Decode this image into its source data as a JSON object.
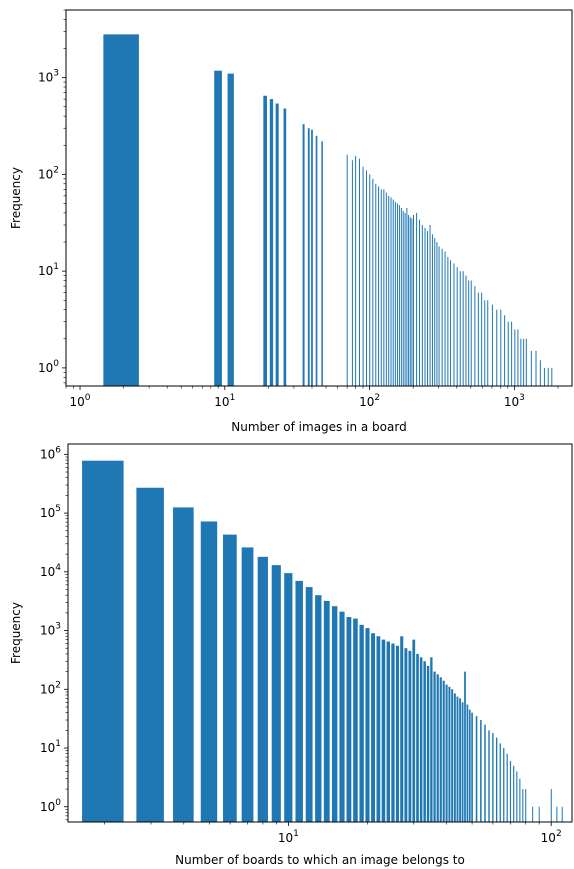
{
  "chart_data": [
    {
      "type": "bar",
      "xscale": "log",
      "yscale": "log",
      "xlim": [
        0.8,
        2500
      ],
      "ylim": [
        0.65,
        5000
      ],
      "xlabel": "Number of images in a board",
      "ylabel": "Frequency",
      "xticks": [
        {
          "v": 1,
          "base": "10",
          "exp": "0"
        },
        {
          "v": 10,
          "base": "10",
          "exp": "1"
        },
        {
          "v": 100,
          "base": "10",
          "exp": "2"
        },
        {
          "v": 1000,
          "base": "10",
          "exp": "3"
        }
      ],
      "yticks": [
        {
          "v": 1,
          "base": "10",
          "exp": "0"
        },
        {
          "v": 10,
          "base": "10",
          "exp": "1"
        },
        {
          "v": 100,
          "base": "10",
          "exp": "2"
        },
        {
          "v": 1000,
          "base": "10",
          "exp": "3"
        }
      ],
      "color": "#1f77b4",
      "bars": [
        [
          2,
          2800
        ],
        [
          9,
          1180
        ],
        [
          11,
          1100
        ],
        [
          19,
          650
        ],
        [
          21,
          600
        ],
        [
          23,
          540
        ],
        [
          26,
          480
        ],
        [
          35,
          330
        ],
        [
          38,
          300
        ],
        [
          40,
          290
        ],
        [
          43,
          250
        ],
        [
          47,
          220
        ],
        [
          70,
          160
        ],
        [
          76,
          140
        ],
        [
          80,
          155
        ],
        [
          85,
          145
        ],
        [
          90,
          120
        ],
        [
          95,
          110
        ],
        [
          100,
          100
        ],
        [
          105,
          90
        ],
        [
          110,
          80
        ],
        [
          115,
          75
        ],
        [
          120,
          70
        ],
        [
          125,
          70
        ],
        [
          130,
          65
        ],
        [
          135,
          60
        ],
        [
          140,
          58
        ],
        [
          145,
          55
        ],
        [
          150,
          52
        ],
        [
          155,
          50
        ],
        [
          160,
          48
        ],
        [
          165,
          45
        ],
        [
          170,
          42
        ],
        [
          175,
          40
        ],
        [
          180,
          45
        ],
        [
          185,
          38
        ],
        [
          190,
          36
        ],
        [
          195,
          35
        ],
        [
          200,
          38
        ],
        [
          210,
          40
        ],
        [
          220,
          34
        ],
        [
          230,
          30
        ],
        [
          240,
          28
        ],
        [
          250,
          26
        ],
        [
          260,
          30
        ],
        [
          270,
          24
        ],
        [
          280,
          22
        ],
        [
          290,
          20
        ],
        [
          300,
          18
        ],
        [
          315,
          17
        ],
        [
          330,
          16
        ],
        [
          345,
          14
        ],
        [
          360,
          13
        ],
        [
          380,
          12
        ],
        [
          400,
          11
        ],
        [
          420,
          10
        ],
        [
          440,
          10
        ],
        [
          460,
          9
        ],
        [
          480,
          8
        ],
        [
          500,
          8
        ],
        [
          530,
          7
        ],
        [
          560,
          6
        ],
        [
          590,
          6
        ],
        [
          620,
          5
        ],
        [
          650,
          5
        ],
        [
          700,
          4.5
        ],
        [
          750,
          4
        ],
        [
          800,
          4
        ],
        [
          850,
          3.5
        ],
        [
          900,
          3
        ],
        [
          950,
          3
        ],
        [
          1000,
          2.5
        ],
        [
          1050,
          2.5
        ],
        [
          1100,
          2
        ],
        [
          1150,
          2
        ],
        [
          1200,
          2
        ],
        [
          1300,
          1.5
        ],
        [
          1400,
          1.5
        ],
        [
          1500,
          1.2
        ],
        [
          1600,
          1
        ],
        [
          1700,
          1
        ],
        [
          1800,
          1
        ]
      ]
    },
    {
      "type": "bar",
      "xscale": "log",
      "yscale": "log",
      "xlim": [
        1.45,
        120
      ],
      "ylim": [
        0.55,
        1500000
      ],
      "xlabel": "Number of boards to which an image belongs to",
      "ylabel": "Frequency",
      "xticks": [
        {
          "v": 10,
          "base": "10",
          "exp": "1"
        },
        {
          "v": 100,
          "base": "10",
          "exp": "2"
        }
      ],
      "yticks": [
        {
          "v": 1,
          "base": "10",
          "exp": "0"
        },
        {
          "v": 10,
          "base": "10",
          "exp": "1"
        },
        {
          "v": 100,
          "base": "10",
          "exp": "2"
        },
        {
          "v": 1000,
          "base": "10",
          "exp": "3"
        },
        {
          "v": 10000,
          "base": "10",
          "exp": "4"
        },
        {
          "v": 100000,
          "base": "10",
          "exp": "5"
        },
        {
          "v": 1000000,
          "base": "10",
          "exp": "6"
        }
      ],
      "color": "#1f77b4",
      "bars": [
        [
          2,
          780000
        ],
        [
          3,
          270000
        ],
        [
          4,
          125000
        ],
        [
          5,
          72000
        ],
        [
          6,
          43000
        ],
        [
          7,
          26000
        ],
        [
          8,
          18000
        ],
        [
          9,
          13000
        ],
        [
          10,
          9500
        ],
        [
          11,
          7000
        ],
        [
          12,
          5500
        ],
        [
          13,
          4000
        ],
        [
          14,
          3200
        ],
        [
          15,
          2600
        ],
        [
          16,
          2100
        ],
        [
          17,
          1700
        ],
        [
          18,
          1600
        ],
        [
          19,
          1250
        ],
        [
          20,
          1100
        ],
        [
          21,
          900
        ],
        [
          22,
          800
        ],
        [
          23,
          700
        ],
        [
          24,
          650
        ],
        [
          25,
          600
        ],
        [
          26,
          550
        ],
        [
          27,
          800
        ],
        [
          28,
          500
        ],
        [
          29,
          450
        ],
        [
          30,
          700
        ],
        [
          31,
          400
        ],
        [
          32,
          350
        ],
        [
          33,
          300
        ],
        [
          34,
          250
        ],
        [
          35,
          350
        ],
        [
          36,
          200
        ],
        [
          37,
          180
        ],
        [
          38,
          160
        ],
        [
          39,
          140
        ],
        [
          40,
          120
        ],
        [
          41,
          110
        ],
        [
          42,
          100
        ],
        [
          43,
          85
        ],
        [
          44,
          75
        ],
        [
          45,
          70
        ],
        [
          46,
          60
        ],
        [
          47,
          200
        ],
        [
          48,
          55
        ],
        [
          49,
          45
        ],
        [
          50,
          40
        ],
        [
          52,
          35
        ],
        [
          54,
          30
        ],
        [
          56,
          25
        ],
        [
          58,
          20
        ],
        [
          60,
          18
        ],
        [
          62,
          15
        ],
        [
          64,
          12
        ],
        [
          66,
          10
        ],
        [
          68,
          8
        ],
        [
          70,
          6
        ],
        [
          72,
          5
        ],
        [
          74,
          4
        ],
        [
          76,
          3
        ],
        [
          78,
          2
        ],
        [
          80,
          2
        ],
        [
          85,
          1
        ],
        [
          90,
          1
        ],
        [
          100,
          2
        ],
        [
          105,
          1
        ],
        [
          110,
          1
        ]
      ]
    }
  ]
}
